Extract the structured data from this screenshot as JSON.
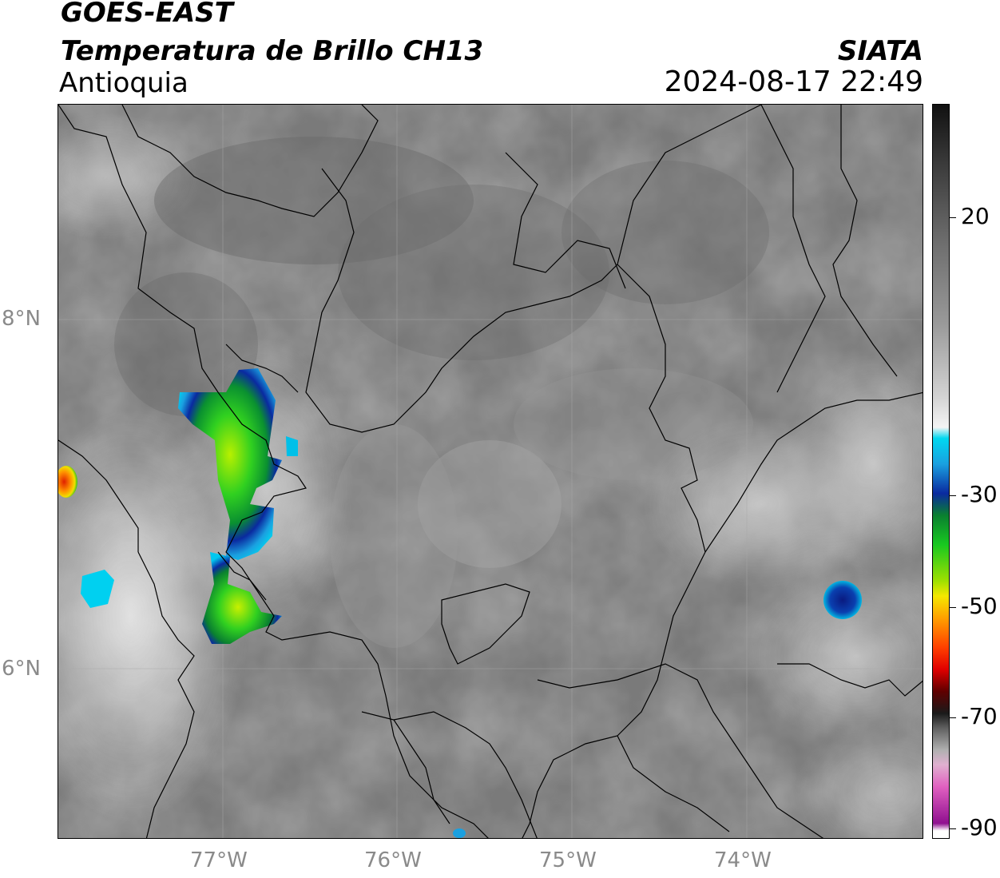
{
  "header": {
    "satellite": "GOES-EAST",
    "product": "Temperatura de Brillo CH13",
    "region": "Antioquia",
    "organization": "SIATA",
    "datetime": "2024-08-17 22:49"
  },
  "map": {
    "lat_labels": [
      "8°N",
      "6°N"
    ],
    "lon_labels": [
      "77°W",
      "76°W",
      "75°W",
      "74°W"
    ],
    "storm_cells": [
      {
        "name": "main-cell-north",
        "lon": -76.9,
        "lat": 7.3
      },
      {
        "name": "main-cell-south",
        "lon": -77.05,
        "lat": 6.35
      },
      {
        "name": "east-cell",
        "lon": -73.5,
        "lat": 6.4
      },
      {
        "name": "west-edge-cell",
        "lon": -77.9,
        "lat": 7.1
      }
    ]
  },
  "colorbar": {
    "labels": [
      "20",
      "-30",
      "-50",
      "-70",
      "-90"
    ],
    "colors": {
      "warm_top": "#111111",
      "gray_mid": "#9a9a9a",
      "white": "#f4f4f4",
      "cyan": "#00d8f0",
      "blue": "#0a2aa0",
      "green": "#18c820",
      "yellow": "#f4e800",
      "orange": "#ff8a00",
      "red": "#e00000",
      "dark": "#1a1a1a",
      "pink": "#e060c0",
      "purple": "#901090"
    }
  }
}
